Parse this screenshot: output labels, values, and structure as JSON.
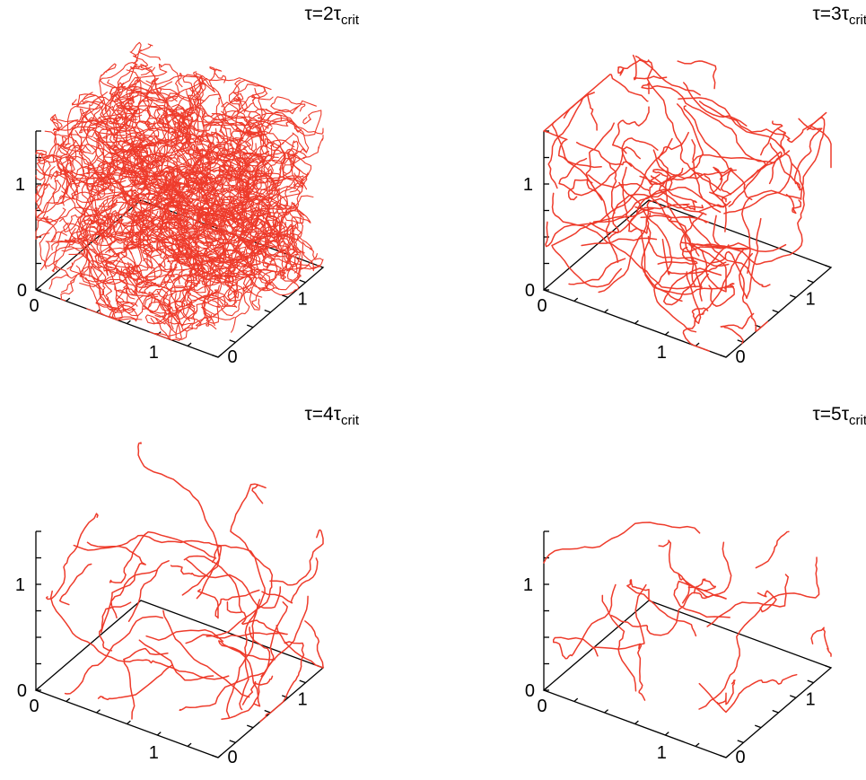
{
  "chart_data": [
    {
      "type": "line",
      "title": {
        "sym": "τ=2τ",
        "sub": "crit"
      },
      "density": 520,
      "xlim": [
        0,
        1.5
      ],
      "ylim": [
        0,
        1.5
      ],
      "zlim": [
        0,
        1.5
      ],
      "ticks": {
        "z": [
          "0",
          "1"
        ],
        "x": [
          "0",
          "1"
        ],
        "y": [
          "0",
          "1"
        ]
      },
      "line_color": "#ee3b2b",
      "grid": false
    },
    {
      "type": "line",
      "title": {
        "sym": "τ=3τ",
        "sub": "crit"
      },
      "density": 70,
      "xlim": [
        0,
        1.5
      ],
      "ylim": [
        0,
        1.5
      ],
      "zlim": [
        0,
        1.5
      ],
      "ticks": {
        "z": [
          "0",
          "1"
        ],
        "x": [
          "0",
          "1"
        ],
        "y": [
          "0",
          "1"
        ]
      },
      "line_color": "#ee3b2b",
      "grid": false
    },
    {
      "type": "line",
      "title": {
        "sym": "τ=4τ",
        "sub": "crit"
      },
      "density": 34,
      "xlim": [
        0,
        1.5
      ],
      "ylim": [
        0,
        1.5
      ],
      "zlim": [
        0,
        1.5
      ],
      "ticks": {
        "z": [
          "0",
          "1"
        ],
        "x": [
          "0",
          "1"
        ],
        "y": [
          "0",
          "1"
        ]
      },
      "line_color": "#ee3b2b",
      "grid": false
    },
    {
      "type": "line",
      "title": {
        "sym": "τ=5τ",
        "sub": "crit"
      },
      "density": 18,
      "xlim": [
        0,
        1.5
      ],
      "ylim": [
        0,
        1.5
      ],
      "zlim": [
        0,
        1.5
      ],
      "ticks": {
        "z": [
          "0",
          "1"
        ],
        "x": [
          "0",
          "1"
        ],
        "y": [
          "0",
          "1"
        ]
      },
      "line_color": "#ee3b2b",
      "grid": false
    }
  ]
}
